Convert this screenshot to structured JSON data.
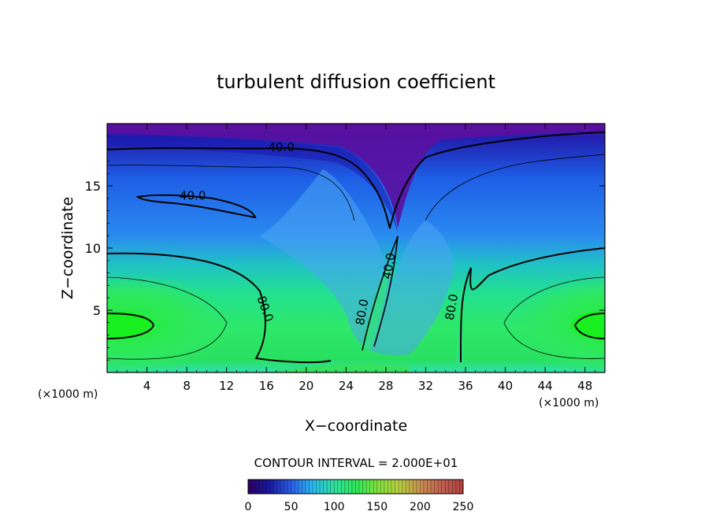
{
  "chart_data": {
    "type": "heatmap",
    "title": "turbulent diffusion coefficient",
    "xlabel": "X−coordinate",
    "ylabel": "Z−coordinate",
    "x_unit_left": "(×1000 m)",
    "x_unit_right": "(×1000 m)",
    "xlim": [
      0,
      50
    ],
    "ylim": [
      0,
      20
    ],
    "xticks": [
      4,
      8,
      12,
      16,
      20,
      24,
      28,
      32,
      36,
      40,
      44,
      48
    ],
    "yticks": [
      5,
      10,
      15
    ],
    "contour_interval_text": "CONTOUR INTERVAL = 2.000E+01",
    "contour_labels": [
      {
        "text": "40.0",
        "x": 17.5,
        "y": 17.8
      },
      {
        "text": "40.0",
        "x": 8.6,
        "y": 13.9
      },
      {
        "text": "80.0",
        "x": 15.5,
        "y": 5.0
      },
      {
        "text": "80.0",
        "x": 26.0,
        "y": 4.8
      },
      {
        "text": "40.0",
        "x": 28.7,
        "y": 8.5
      },
      {
        "text": "80.0",
        "x": 35.0,
        "y": 5.2
      }
    ],
    "colorbar": {
      "min": 0,
      "max": 250,
      "ticks": [
        0,
        50,
        100,
        150,
        200,
        250
      ],
      "colors": [
        "#2a0060",
        "#1a1aa0",
        "#2a5ee8",
        "#2ab8f0",
        "#30e0a0",
        "#2ee85a",
        "#80e040",
        "#b8d040",
        "#c89050",
        "#c06050",
        "#b04040"
      ]
    }
  }
}
